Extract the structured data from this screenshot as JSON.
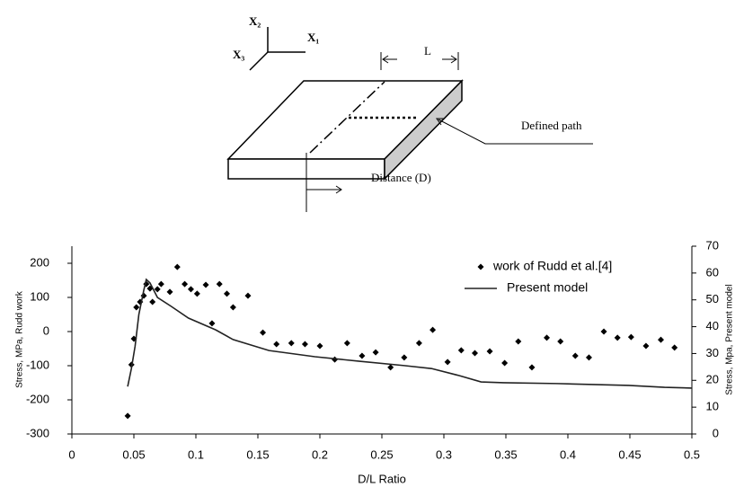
{
  "diagram": {
    "labels": {
      "x2": "X₂",
      "x1": "X₁",
      "x3": "X₃",
      "length": "L",
      "path": "Defined path",
      "distance": "Distance (D)"
    }
  },
  "chart_data": {
    "type": "combo",
    "x_label": "D/L Ratio",
    "y_label": "Stress, MPa, Rudd work",
    "y2_label": "Stress, Mpa, Present model",
    "xlim": [
      0,
      0.5
    ],
    "xticks": [
      0,
      0.05,
      0.1,
      0.15,
      0.2,
      0.25,
      0.3,
      0.35,
      0.4,
      0.45,
      0.5
    ],
    "ylim": [
      -300,
      250
    ],
    "yticks": [
      -300,
      -200,
      -100,
      0,
      100,
      200
    ],
    "y2lim": [
      0,
      70
    ],
    "y2ticks": [
      0,
      10,
      20,
      30,
      40,
      50,
      60,
      70
    ],
    "legend": "upper right",
    "series": [
      {
        "name": "work of Rudd et al.[4]",
        "type": "scatter",
        "color": "#000000",
        "x": [
          0.045,
          0.048,
          0.05,
          0.052,
          0.055,
          0.058,
          0.06,
          0.063,
          0.065,
          0.069,
          0.072,
          0.079,
          0.085,
          0.091,
          0.096,
          0.101,
          0.108,
          0.113,
          0.119,
          0.125,
          0.13,
          0.142,
          0.154,
          0.165,
          0.177,
          0.188,
          0.2,
          0.212,
          0.222,
          0.234,
          0.245,
          0.257,
          0.268,
          0.28,
          0.291,
          0.303,
          0.314,
          0.325,
          0.337,
          0.349,
          0.36,
          0.371,
          0.383,
          0.394,
          0.406,
          0.417,
          0.429,
          0.44,
          0.451,
          0.463,
          0.475,
          0.486
        ],
        "values": [
          -247,
          -97,
          -21,
          71,
          87,
          105,
          139,
          126,
          87,
          124,
          139,
          116,
          189,
          139,
          124,
          111,
          137,
          24,
          139,
          111,
          71,
          105,
          -3,
          -37,
          -34,
          -37,
          -42,
          -82,
          -34,
          -71,
          -61,
          -105,
          -76,
          -34,
          5,
          -89,
          -55,
          -63,
          -58,
          -92,
          -29,
          -105,
          -18,
          -29,
          -71,
          -76,
          0,
          -18,
          -16,
          -42,
          -24,
          -47
        ]
      },
      {
        "name": "Present model",
        "type": "line",
        "axis": "y2",
        "color": "#222222",
        "x": [
          0.045,
          0.048,
          0.051,
          0.054,
          0.058,
          0.06,
          0.063,
          0.069,
          0.08,
          0.094,
          0.116,
          0.13,
          0.159,
          0.196,
          0.232,
          0.268,
          0.29,
          0.312,
          0.33,
          0.348,
          0.391,
          0.449,
          0.478,
          0.5
        ],
        "values": [
          17.7,
          24.4,
          32.8,
          44.5,
          53.6,
          57.6,
          56.3,
          50.9,
          47.6,
          43.2,
          38.8,
          35.2,
          31.1,
          28.8,
          27.1,
          25.5,
          24.4,
          21.8,
          19.4,
          19.1,
          18.8,
          18.1,
          17.4,
          17.1
        ]
      }
    ]
  }
}
